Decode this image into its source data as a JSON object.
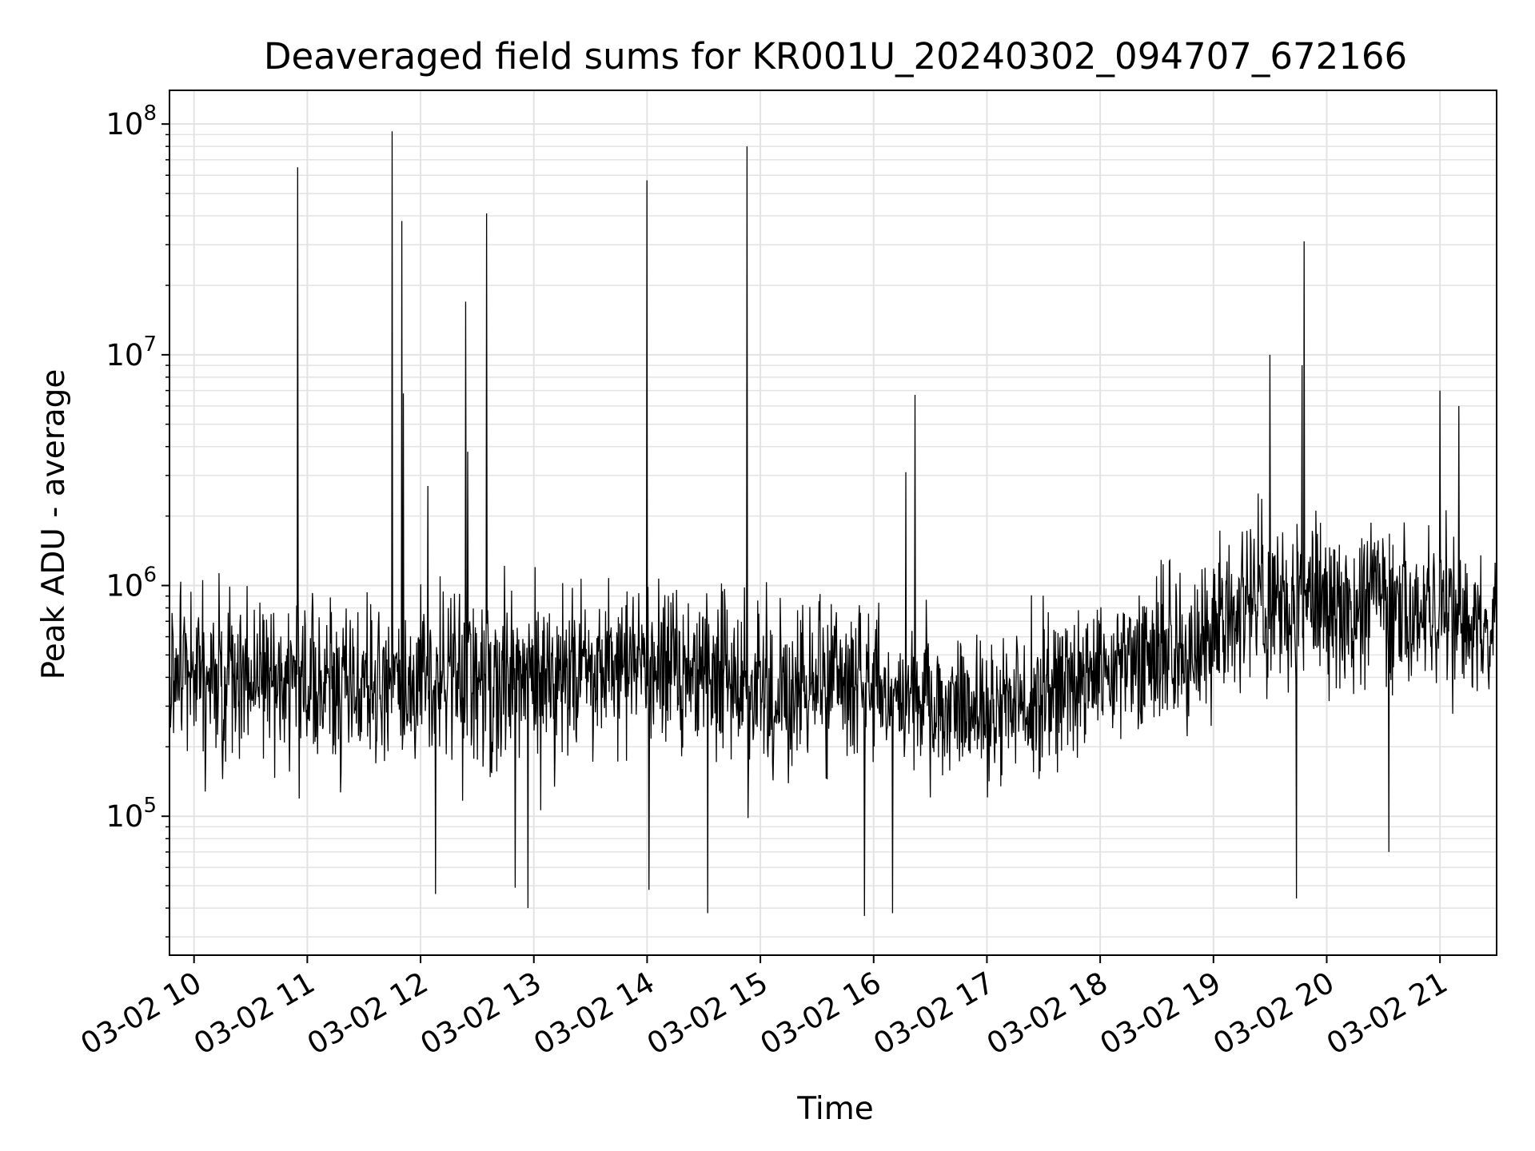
{
  "chart_data": {
    "type": "line",
    "title": "Deaveraged field sums for KR001U_20240302_094707_672166",
    "xlabel": "Time",
    "ylabel": "Peak ADU - average",
    "yscale": "log",
    "ylim": [
      25000,
      140000000
    ],
    "xlim": [
      "2024-03-02 09:47",
      "2024-03-02 21:30"
    ],
    "grid": true,
    "line_color": "#000000",
    "x_ticks": [
      "03-02 10",
      "03-02 11",
      "03-02 12",
      "03-02 13",
      "03-02 14",
      "03-02 15",
      "03-02 16",
      "03-02 17",
      "03-02 18",
      "03-02 19",
      "03-02 20",
      "03-02 21"
    ],
    "y_ticks": [
      {
        "base": "10",
        "exp": "5",
        "value": 100000
      },
      {
        "base": "10",
        "exp": "6",
        "value": 1000000
      },
      {
        "base": "10",
        "exp": "7",
        "value": 10000000
      },
      {
        "base": "10",
        "exp": "8",
        "value": 100000000
      }
    ],
    "baseline_hourly": [
      {
        "time": "2024-03-02 10:00",
        "median": 400000,
        "spread": 3.0
      },
      {
        "time": "2024-03-02 11:00",
        "median": 400000,
        "spread": 3.0
      },
      {
        "time": "2024-03-02 12:00",
        "median": 350000,
        "spread": 3.5
      },
      {
        "time": "2024-03-02 13:00",
        "median": 400000,
        "spread": 3.5
      },
      {
        "time": "2024-03-02 14:00",
        "median": 450000,
        "spread": 3.0
      },
      {
        "time": "2024-03-02 15:00",
        "median": 350000,
        "spread": 3.0
      },
      {
        "time": "2024-03-02 16:00",
        "median": 350000,
        "spread": 3.0
      },
      {
        "time": "2024-03-02 17:00",
        "median": 300000,
        "spread": 2.5
      },
      {
        "time": "2024-03-02 18:00",
        "median": 400000,
        "spread": 3.0
      },
      {
        "time": "2024-03-02 19:00",
        "median": 600000,
        "spread": 3.0
      },
      {
        "time": "2024-03-02 19:30",
        "median": 1000000,
        "spread": 3.5
      },
      {
        "time": "2024-03-02 20:00",
        "median": 800000,
        "spread": 3.0
      },
      {
        "time": "2024-03-02 21:00",
        "median": 800000,
        "spread": 3.0
      },
      {
        "time": "2024-03-02 21:30",
        "median": 600000,
        "spread": 2.5
      }
    ],
    "spikes": [
      {
        "time": "2024-03-02 10:55",
        "value": 65000000
      },
      {
        "time": "2024-03-02 11:45",
        "value": 93000000
      },
      {
        "time": "2024-03-02 11:50",
        "value": 38000000
      },
      {
        "time": "2024-03-02 11:51",
        "value": 6800000
      },
      {
        "time": "2024-03-02 12:04",
        "value": 2700000
      },
      {
        "time": "2024-03-02 12:24",
        "value": 17000000
      },
      {
        "time": "2024-03-02 12:25",
        "value": 3800000
      },
      {
        "time": "2024-03-02 12:35",
        "value": 41000000
      },
      {
        "time": "2024-03-02 14:00",
        "value": 57000000
      },
      {
        "time": "2024-03-02 14:53",
        "value": 80000000
      },
      {
        "time": "2024-03-02 16:17",
        "value": 3100000
      },
      {
        "time": "2024-03-02 16:22",
        "value": 6700000
      },
      {
        "time": "2024-03-02 19:30",
        "value": 10000000
      },
      {
        "time": "2024-03-02 19:48",
        "value": 31000000
      },
      {
        "time": "2024-03-02 19:47",
        "value": 9000000
      },
      {
        "time": "2024-03-02 21:00",
        "value": 7000000
      },
      {
        "time": "2024-03-02 21:10",
        "value": 6000000
      }
    ],
    "dips": [
      {
        "time": "2024-03-02 12:08",
        "value": 46000.0
      },
      {
        "time": "2024-03-02 12:50",
        "value": 49000.0
      },
      {
        "time": "2024-03-02 12:57",
        "value": 40000
      },
      {
        "time": "2024-03-02 14:01",
        "value": 48000
      },
      {
        "time": "2024-03-02 14:32",
        "value": 38000
      },
      {
        "time": "2024-03-02 15:55",
        "value": 37000
      },
      {
        "time": "2024-03-02 16:10",
        "value": 38000
      },
      {
        "time": "2024-03-02 19:44",
        "value": 44000
      },
      {
        "time": "2024-03-02 20:33",
        "value": 70000
      }
    ]
  }
}
